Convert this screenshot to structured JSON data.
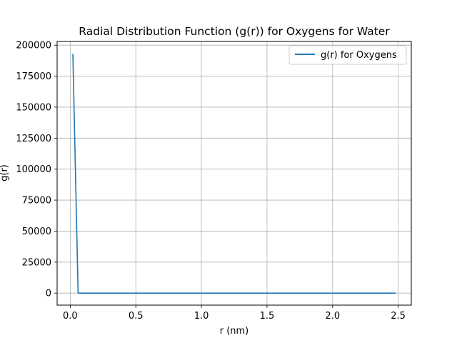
{
  "chart_data": {
    "type": "line",
    "title": "Radial Distribution Function (g(r)) for Oxygens for Water",
    "xlabel": "r (nm)",
    "ylabel": "g(r)",
    "xlim": [
      -0.1,
      2.6
    ],
    "ylim": [
      -9700,
      203000
    ],
    "xticks": [
      0.0,
      0.5,
      1.0,
      1.5,
      2.0,
      2.5
    ],
    "xtick_labels": [
      "0.0",
      "0.5",
      "1.0",
      "1.5",
      "2.0",
      "2.5"
    ],
    "yticks": [
      0,
      25000,
      50000,
      75000,
      100000,
      125000,
      150000,
      175000,
      200000
    ],
    "ytick_labels": [
      "0",
      "25000",
      "50000",
      "75000",
      "100000",
      "125000",
      "150000",
      "175000",
      "200000"
    ],
    "grid": true,
    "legend_position": "top-right",
    "series": [
      {
        "name": "g(r) for Oxygens",
        "color": "#1f77b4",
        "x": [
          0.02,
          0.06,
          0.1,
          0.5,
          1.0,
          1.5,
          2.0,
          2.48
        ],
        "y": [
          193000,
          0,
          0,
          0,
          0,
          0,
          0,
          0
        ]
      }
    ]
  }
}
